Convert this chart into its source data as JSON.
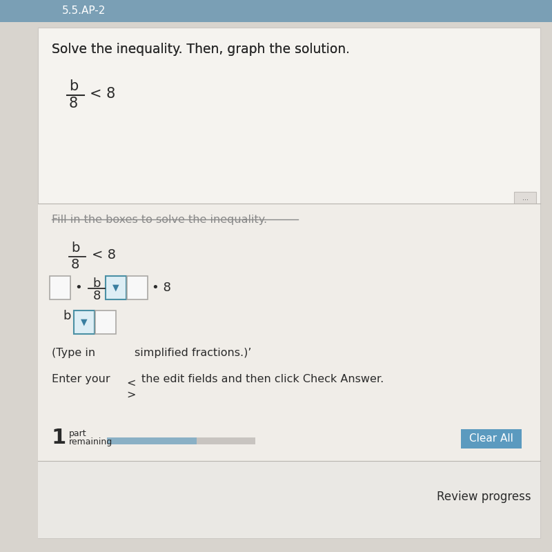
{
  "bg_color": "#d8d4ce",
  "header_bg": "#7a9fb5",
  "header_text": "5.5.AP-2",
  "header_text_color": "#ffffff",
  "card_bg": "#f0ede8",
  "card_inner_bg": "#f5f3ef",
  "title": "Solve the inequality. Then, graph the solution.",
  "font_color_dark": "#2a2a2a",
  "font_color_medium": "#555555",
  "font_color_gray": "#888888",
  "divider_color": "#b8b4ae",
  "box_border_plain": "#aaa8a4",
  "box_border_blue": "#4a90a4",
  "dropdown_fill": "#ddeef5",
  "dropdown_arrow_color": "#3a7fa0",
  "box_empty_bg": "#f8f8f8",
  "clear_btn_color": "#5b9abf",
  "clear_btn_text_color": "#ffffff",
  "progress_bar_bg": "#c8c4c0",
  "progress_bar_fill": "#8ab0c5",
  "ellipsis_btn_bg": "#e0dcd8",
  "ellipsis_btn_border": "#c0bcb8",
  "review_bg": "#eae8e4",
  "strikethrough_color": "#888888",
  "fill_label": "Fill in the boxes to solve the inequality.",
  "type_note_left": "(Type in",
  "type_note_right": "simplified fractions.)’",
  "enter_note_left": "Enter your",
  "enter_note_right": "the edit fields and then click Check Answer.",
  "less_than": "<",
  "greater_than": ">",
  "part_num": "1",
  "part_text1": "part",
  "part_text2": "remaining",
  "clear_all": "Clear All",
  "review_progress": "Review progress",
  "ellipsis": "...",
  "dot": "•"
}
